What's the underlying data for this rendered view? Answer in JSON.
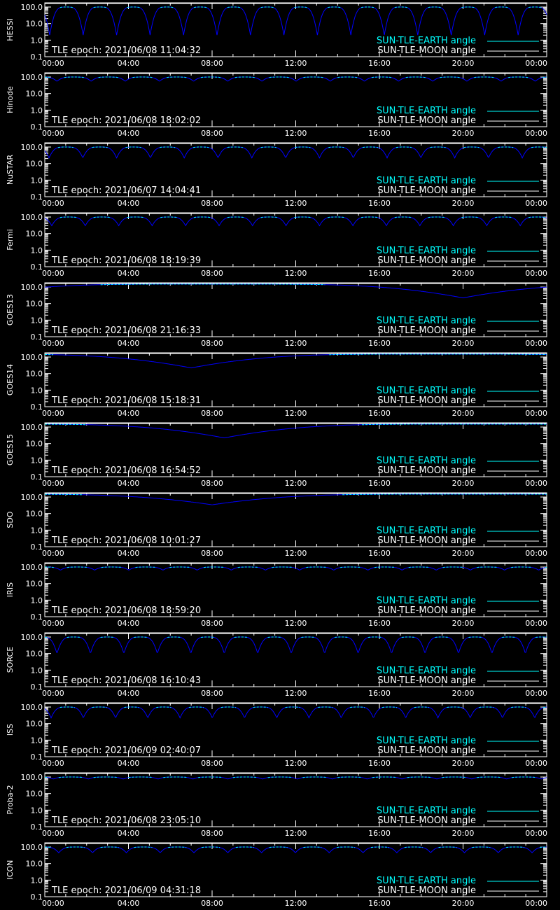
{
  "legend": {
    "earth_label": "SUN-TLE-EARTH angle",
    "moon_label": "SUN-TLE-MOON angle"
  },
  "epoch_prefix": "TLE epoch: ",
  "colors": {
    "background": "#000000",
    "axes": "#ffffff",
    "earth_line": "#00ffff",
    "moon_line": "#ffffff",
    "occultation_curve": "#0000ff",
    "text": "#ffffff"
  },
  "chart_data": [
    {
      "type": "line",
      "panel_label": "HESSI",
      "tle_epoch": "2021/06/08 11:04:32",
      "xlabels": [
        "00:00",
        "04:00",
        "08:00",
        "12:00",
        "16:00",
        "20:00",
        "00:00"
      ],
      "xlim_hours": [
        0,
        24
      ],
      "ylim": [
        0.1,
        180
      ],
      "yscale": "log",
      "yticks": [
        "100.0",
        "10.0",
        "1.0",
        "0.1"
      ],
      "series": [
        {
          "name": "SUN-TLE-EARTH angle",
          "baseline": 100,
          "min": 2,
          "period_min": 96,
          "phase_min": 14
        }
      ]
    },
    {
      "type": "line",
      "panel_label": "Hinode",
      "tle_epoch": "2021/06/08 18:02:02",
      "xlabels": [
        "00:00",
        "04:00",
        "08:00",
        "12:00",
        "16:00",
        "20:00",
        "00:00"
      ],
      "xlim_hours": [
        0,
        24
      ],
      "ylim": [
        0.1,
        180
      ],
      "yscale": "log",
      "yticks": [
        "100.0",
        "10.0",
        "1.0",
        "0.1"
      ],
      "series": [
        {
          "name": "SUN-TLE-EARTH angle",
          "baseline": 100,
          "min": 55,
          "period_min": 98,
          "phase_min": 35
        }
      ]
    },
    {
      "type": "line",
      "panel_label": "NuSTAR",
      "tle_epoch": "2021/06/07 14:04:41",
      "xlabels": [
        "00:00",
        "04:00",
        "08:00",
        "12:00",
        "16:00",
        "20:00",
        "00:00"
      ],
      "xlim_hours": [
        0,
        24
      ],
      "ylim": [
        0.1,
        180
      ],
      "yscale": "log",
      "yticks": [
        "100.0",
        "10.0",
        "1.0",
        "0.1"
      ],
      "series": [
        {
          "name": "SUN-TLE-EARTH angle",
          "baseline": 100,
          "min": 22,
          "period_min": 97,
          "phase_min": 12
        }
      ]
    },
    {
      "type": "line",
      "panel_label": "Fermi",
      "tle_epoch": "2021/06/08 18:19:39",
      "xlabels": [
        "00:00",
        "04:00",
        "08:00",
        "12:00",
        "16:00",
        "20:00",
        "00:00"
      ],
      "xlim_hours": [
        0,
        24
      ],
      "ylim": [
        0.1,
        180
      ],
      "yscale": "log",
      "yticks": [
        "100.0",
        "10.0",
        "1.0",
        "0.1"
      ],
      "series": [
        {
          "name": "SUN-TLE-EARTH angle",
          "baseline": 100,
          "min": 30,
          "period_min": 96,
          "phase_min": 20
        }
      ]
    },
    {
      "type": "line",
      "panel_label": "GOES13",
      "tle_epoch": "2021/06/08 21:16:33",
      "xlabels": [
        "00:00",
        "04:00",
        "08:00",
        "12:00",
        "16:00",
        "20:00",
        "00:00"
      ],
      "xlim_hours": [
        0,
        24
      ],
      "ylim": [
        0.1,
        180
      ],
      "yscale": "log",
      "yticks": [
        "100.0",
        "10.0",
        "1.0",
        "0.1"
      ],
      "series": [
        {
          "name": "SUN-TLE-EARTH angle",
          "baseline": 150,
          "min": 22,
          "period_min": 1436,
          "phase_min": 1200
        }
      ]
    },
    {
      "type": "line",
      "panel_label": "GOES14",
      "tle_epoch": "2021/06/08 15:18:31",
      "xlabels": [
        "00:00",
        "04:00",
        "08:00",
        "12:00",
        "16:00",
        "20:00",
        "00:00"
      ],
      "xlim_hours": [
        0,
        24
      ],
      "ylim": [
        0.1,
        180
      ],
      "yscale": "log",
      "yticks": [
        "100.0",
        "10.0",
        "1.0",
        "0.1"
      ],
      "series": [
        {
          "name": "SUN-TLE-EARTH angle",
          "baseline": 150,
          "min": 22,
          "period_min": 1436,
          "phase_min": 420
        }
      ]
    },
    {
      "type": "line",
      "panel_label": "GOES15",
      "tle_epoch": "2021/06/08 16:54:52",
      "xlabels": [
        "00:00",
        "04:00",
        "08:00",
        "12:00",
        "16:00",
        "20:00",
        "00:00"
      ],
      "xlim_hours": [
        0,
        24
      ],
      "ylim": [
        0.1,
        180
      ],
      "yscale": "log",
      "yticks": [
        "100.0",
        "10.0",
        "1.0",
        "0.1"
      ],
      "series": [
        {
          "name": "SUN-TLE-EARTH angle",
          "baseline": 150,
          "min": 22,
          "period_min": 1436,
          "phase_min": 515
        }
      ]
    },
    {
      "type": "line",
      "panel_label": "SDO",
      "tle_epoch": "2021/06/08 10:01:27",
      "xlabels": [
        "00:00",
        "04:00",
        "08:00",
        "12:00",
        "16:00",
        "20:00",
        "00:00"
      ],
      "xlim_hours": [
        0,
        24
      ],
      "ylim": [
        0.1,
        180
      ],
      "yscale": "log",
      "yticks": [
        "100.0",
        "10.0",
        "1.0",
        "0.1"
      ],
      "series": [
        {
          "name": "SUN-TLE-EARTH angle",
          "baseline": 150,
          "min": 34,
          "period_min": 1436,
          "phase_min": 480
        }
      ]
    },
    {
      "type": "line",
      "panel_label": "IRIS",
      "tle_epoch": "2021/06/08 18:59:20",
      "xlabels": [
        "00:00",
        "04:00",
        "08:00",
        "12:00",
        "16:00",
        "20:00",
        "00:00"
      ],
      "xlim_hours": [
        0,
        24
      ],
      "ylim": [
        0.1,
        180
      ],
      "yscale": "log",
      "yticks": [
        "100.0",
        "10.0",
        "1.0",
        "0.1"
      ],
      "series": [
        {
          "name": "SUN-TLE-EARTH angle",
          "baseline": 100,
          "min": 65,
          "period_min": 98,
          "phase_min": 45
        }
      ]
    },
    {
      "type": "line",
      "panel_label": "SORCE",
      "tle_epoch": "2021/06/08 16:10:43",
      "xlabels": [
        "00:00",
        "04:00",
        "08:00",
        "12:00",
        "16:00",
        "20:00",
        "00:00"
      ],
      "xlim_hours": [
        0,
        24
      ],
      "ylim": [
        0.1,
        180
      ],
      "yscale": "log",
      "yticks": [
        "100.0",
        "10.0",
        "1.0",
        "0.1"
      ],
      "series": [
        {
          "name": "SUN-TLE-EARTH angle",
          "baseline": 100,
          "min": 10,
          "period_min": 96,
          "phase_min": 35
        }
      ]
    },
    {
      "type": "line",
      "panel_label": "ISS",
      "tle_epoch": "2021/06/09 02:40:07",
      "xlabels": [
        "00:00",
        "04:00",
        "08:00",
        "12:00",
        "16:00",
        "20:00",
        "00:00"
      ],
      "xlim_hours": [
        0,
        24
      ],
      "ylim": [
        0.1,
        180
      ],
      "yscale": "log",
      "yticks": [
        "100.0",
        "10.0",
        "1.0",
        "0.1"
      ],
      "series": [
        {
          "name": "SUN-TLE-EARTH angle",
          "baseline": 100,
          "min": 22,
          "period_min": 92.5,
          "phase_min": 18
        }
      ]
    },
    {
      "type": "line",
      "panel_label": "Proba-2",
      "tle_epoch": "2021/06/08 23:05:10",
      "xlabels": [
        "00:00",
        "04:00",
        "08:00",
        "12:00",
        "16:00",
        "20:00",
        "00:00"
      ],
      "xlim_hours": [
        0,
        24
      ],
      "ylim": [
        0.1,
        180
      ],
      "yscale": "log",
      "yticks": [
        "100.0",
        "10.0",
        "1.0",
        "0.1"
      ],
      "series": [
        {
          "name": "SUN-TLE-EARTH angle",
          "baseline": 100,
          "min": 75,
          "period_min": 100,
          "phase_min": 25
        }
      ]
    },
    {
      "type": "line",
      "panel_label": "ICON",
      "tle_epoch": "2021/06/09 04:31:18",
      "xlabels": [
        "00:00",
        "04:00",
        "08:00",
        "12:00",
        "16:00",
        "20:00",
        "00:00"
      ],
      "xlim_hours": [
        0,
        24
      ],
      "ylim": [
        0.1,
        180
      ],
      "yscale": "log",
      "yticks": [
        "100.0",
        "10.0",
        "1.0",
        "0.1"
      ],
      "series": [
        {
          "name": "SUN-TLE-EARTH angle",
          "baseline": 100,
          "min": 45,
          "period_min": 97,
          "phase_min": 40
        }
      ]
    }
  ]
}
